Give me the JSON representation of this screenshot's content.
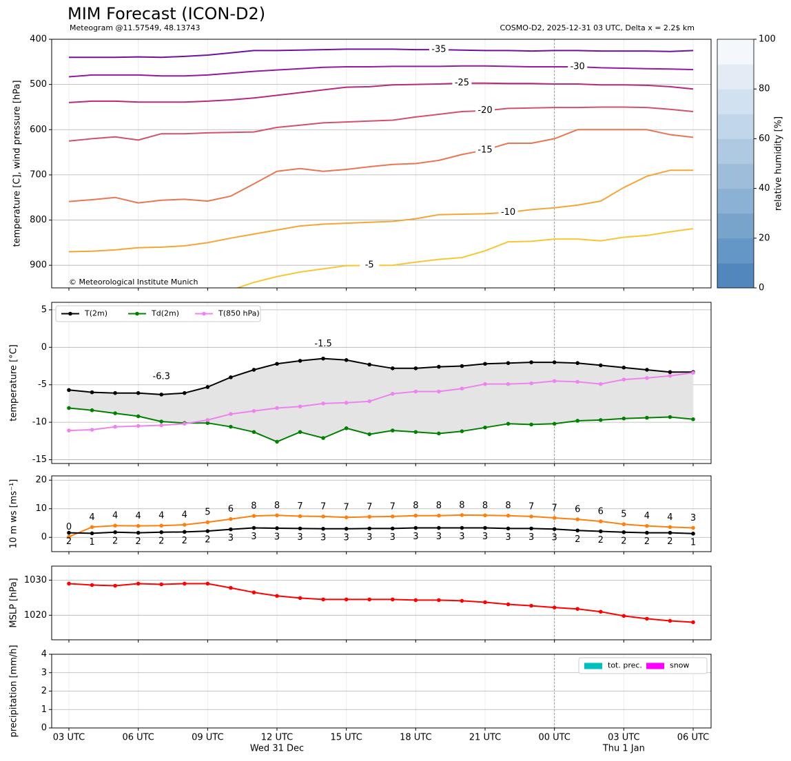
{
  "chart_data": [
    {
      "type": "contour",
      "title": "MIM Forecast (ICON-D2)",
      "subtitle": "Meteogram @11.57549, 48.13743",
      "info": "COSMO-D2, 2025-12-31 03 UTC, Delta x = 2.2$ km",
      "credit": "© Meteorological Institute Munich",
      "ylabel": "temperature [C], wind pressure [hPa]",
      "ylim": [
        950,
        400
      ],
      "yticks": [
        400,
        500,
        600,
        700,
        800,
        900
      ],
      "grid": true,
      "series": [
        {
          "name": "-35",
          "color": "#7010a0",
          "values": [
            440,
            440,
            440,
            439,
            440,
            438,
            435,
            430,
            425,
            425,
            424,
            423,
            422,
            422,
            422,
            423,
            423,
            424,
            425,
            425,
            426,
            425,
            425,
            426,
            426,
            426,
            427,
            425
          ]
        },
        {
          "name": "-30",
          "color": "#9418a0",
          "values": [
            483,
            479,
            479,
            479,
            481,
            481,
            479,
            475,
            471,
            468,
            465,
            462,
            461,
            461,
            460,
            460,
            460,
            459,
            459,
            460,
            461,
            461,
            461,
            463,
            464,
            465,
            466,
            467
          ]
        },
        {
          "name": "-25",
          "color": "#b8287f",
          "values": [
            540,
            537,
            537,
            539,
            539,
            539,
            537,
            534,
            530,
            524,
            518,
            512,
            506,
            505,
            501,
            500,
            499,
            497,
            497,
            498,
            498,
            499,
            499,
            501,
            501,
            502,
            505,
            510
          ]
        },
        {
          "name": "-20",
          "color": "#d44f6b",
          "values": [
            625,
            620,
            616,
            623,
            609,
            609,
            607,
            606,
            605,
            595,
            590,
            585,
            583,
            581,
            579,
            572,
            566,
            560,
            558,
            553,
            552,
            551,
            551,
            550,
            550,
            551,
            555,
            560
          ]
        },
        {
          "name": "-15",
          "color": "#e97650",
          "values": [
            759,
            755,
            750,
            762,
            756,
            754,
            758,
            747,
            720,
            692,
            686,
            692,
            688,
            682,
            677,
            675,
            668,
            655,
            645,
            630,
            630,
            620,
            600,
            600,
            600,
            600,
            611,
            617
          ]
        },
        {
          "name": "-10",
          "color": "#f5a534",
          "values": [
            870,
            869,
            866,
            861,
            860,
            857,
            850,
            840,
            831,
            822,
            813,
            809,
            807,
            805,
            803,
            797,
            788,
            787,
            786,
            783,
            777,
            773,
            767,
            758,
            728,
            703,
            690,
            690
          ]
        },
        {
          "name": "-5",
          "color": "#f9c633",
          "values": [
            null,
            null,
            null,
            null,
            null,
            null,
            null,
            955,
            938,
            925,
            915,
            908,
            901,
            900,
            900,
            893,
            887,
            883,
            868,
            848,
            847,
            842,
            842,
            846,
            838,
            834,
            826,
            819
          ]
        }
      ],
      "colorbar": {
        "label": "relative humidity [%]",
        "lim": [
          0,
          100
        ],
        "ticks": [
          0,
          20,
          40,
          60,
          80,
          100
        ],
        "colors": [
          "#5088bd",
          "#6496c6",
          "#78a4cc",
          "#8bb1d4",
          "#9dbddb",
          "#afc9e2",
          "#c1d6e9",
          "#d2e1ef",
          "#e3ecf5",
          "#f4f8fc"
        ]
      }
    },
    {
      "type": "line",
      "ylabel": "temperature [°C]",
      "ylim": [
        -15.5,
        6
      ],
      "yticks": [
        -15,
        -10,
        -5,
        0,
        5
      ],
      "grid": true,
      "markers": true,
      "legend": "upper left",
      "fill_color": "#e4e4e4",
      "max_label": "-1.5",
      "max_color": "red",
      "min_label": "-6.3",
      "min_color": "blue",
      "series": [
        {
          "name": "T(2m)",
          "color": "#000000",
          "values": [
            -5.7,
            -6.0,
            -6.1,
            -6.1,
            -6.3,
            -6.1,
            -5.3,
            -4.0,
            -3.0,
            -2.2,
            -1.8,
            -1.5,
            -1.7,
            -2.3,
            -2.8,
            -2.8,
            -2.6,
            -2.5,
            -2.2,
            -2.1,
            -2.0,
            -2.0,
            -2.1,
            -2.4,
            -2.7,
            -3.0,
            -3.3,
            -3.3
          ]
        },
        {
          "name": "Td(2m)",
          "color": "#008000",
          "values": [
            -8.1,
            -8.4,
            -8.8,
            -9.2,
            -9.9,
            -10.1,
            -10.1,
            -10.6,
            -11.3,
            -12.6,
            -11.3,
            -12.1,
            -10.8,
            -11.6,
            -11.1,
            -11.3,
            -11.5,
            -11.2,
            -10.7,
            -10.2,
            -10.3,
            -10.2,
            -9.8,
            -9.7,
            -9.5,
            -9.4,
            -9.3,
            -9.6
          ]
        },
        {
          "name": "T(850 hPa)",
          "color": "#ee82ee",
          "values": [
            -11.1,
            -11.0,
            -10.6,
            -10.5,
            -10.4,
            -10.2,
            -9.7,
            -8.9,
            -8.5,
            -8.1,
            -7.9,
            -7.5,
            -7.4,
            -7.2,
            -6.2,
            -5.9,
            -5.9,
            -5.5,
            -4.9,
            -4.9,
            -4.8,
            -4.5,
            -4.6,
            -4.9,
            -4.3,
            -4.1,
            -3.8,
            -3.4
          ]
        }
      ]
    },
    {
      "type": "line",
      "ylabel": "10 m ws [ms⁻¹]",
      "ylim": [
        -5,
        21.5
      ],
      "yticks": [
        0,
        10,
        20
      ],
      "grid": true,
      "markers": true,
      "series": [
        {
          "color": "#ff7f0e",
          "values": [
            0.2,
            3.6,
            4.1,
            4.0,
            4.1,
            4.4,
            5.3,
            6.4,
            7.5,
            7.7,
            7.4,
            7.3,
            7.0,
            7.2,
            7.3,
            7.6,
            7.6,
            7.8,
            7.7,
            7.6,
            7.3,
            6.8,
            6.3,
            5.6,
            4.6,
            4.0,
            3.6,
            3.3
          ],
          "value_labels": [
            "0",
            "4",
            "4",
            "4",
            "4",
            "4",
            "5",
            "6",
            "8",
            "8",
            "7",
            "7",
            "7",
            "7",
            "7",
            "8",
            "8",
            "8",
            "8",
            "8",
            "7",
            "7",
            "6",
            "6",
            "5",
            "4",
            "4",
            "3"
          ]
        },
        {
          "color": "#000000",
          "values": [
            1.6,
            1.4,
            1.8,
            1.6,
            1.8,
            1.9,
            2.2,
            2.8,
            3.3,
            3.2,
            3.1,
            3.0,
            3.0,
            3.1,
            3.1,
            3.3,
            3.3,
            3.3,
            3.3,
            3.1,
            3.1,
            2.9,
            2.4,
            2.1,
            1.8,
            1.6,
            1.6,
            1.3
          ],
          "value_labels": [
            "2",
            "1",
            "2",
            "2",
            "2",
            "2",
            "2",
            "3",
            "3",
            "3",
            "3",
            "3",
            "3",
            "3",
            "3",
            "3",
            "3",
            "3",
            "3",
            "3",
            "3",
            "3",
            "2",
            "2",
            "2",
            "2",
            "2",
            "1"
          ]
        }
      ]
    },
    {
      "type": "line",
      "ylabel": "MSLP [hPa]",
      "ylim": [
        1013,
        1034
      ],
      "yticks": [
        1020,
        1030
      ],
      "grid": true,
      "markers": true,
      "series": [
        {
          "color": "#ff0000",
          "values": [
            1029.0,
            1028.6,
            1028.4,
            1029.0,
            1028.8,
            1029.0,
            1029.0,
            1027.8,
            1026.5,
            1025.5,
            1024.9,
            1024.5,
            1024.5,
            1024.5,
            1024.5,
            1024.3,
            1024.3,
            1024.1,
            1023.7,
            1023.1,
            1022.7,
            1022.2,
            1021.8,
            1021.0,
            1019.8,
            1019.0,
            1018.4,
            1018.0
          ]
        }
      ]
    },
    {
      "type": "bar",
      "ylabel": "precipitation [mm/h]",
      "ylim": [
        0,
        4
      ],
      "yticks": [
        0,
        1,
        2,
        3,
        4
      ],
      "grid": true,
      "legend": "upper right",
      "categories": [
        "03 UTC",
        null,
        null,
        "06 UTC",
        null,
        null,
        "09 UTC",
        null,
        null,
        "12 UTC",
        null,
        null,
        "15 UTC",
        null,
        null,
        "18 UTC",
        null,
        null,
        "21 UTC",
        null,
        null,
        "00 UTC",
        null,
        null,
        "03 UTC",
        null,
        null,
        "06 UTC"
      ],
      "x_sublabels": [
        null,
        null,
        null,
        null,
        null,
        null,
        null,
        null,
        null,
        "Wed 31 Dec",
        null,
        null,
        null,
        null,
        null,
        null,
        null,
        null,
        null,
        null,
        null,
        null,
        null,
        null,
        "Thu 1 Jan",
        null,
        null,
        null
      ],
      "series": [
        {
          "name": "tot. prec.",
          "color": "#00bfbf",
          "values": [
            0,
            0,
            0,
            0,
            0,
            0,
            0,
            0,
            0,
            0,
            0,
            0,
            0,
            0,
            0,
            0,
            0,
            0,
            0,
            0,
            0,
            0,
            0,
            0,
            0,
            0,
            0,
            0
          ]
        },
        {
          "name": "snow",
          "color": "#ff00ff",
          "values": [
            0,
            0,
            0,
            0,
            0,
            0,
            0,
            0,
            0,
            0,
            0,
            0,
            0,
            0,
            0,
            0,
            0,
            0,
            0,
            0,
            0,
            0,
            0,
            0,
            0,
            0,
            0,
            0
          ]
        }
      ]
    }
  ]
}
